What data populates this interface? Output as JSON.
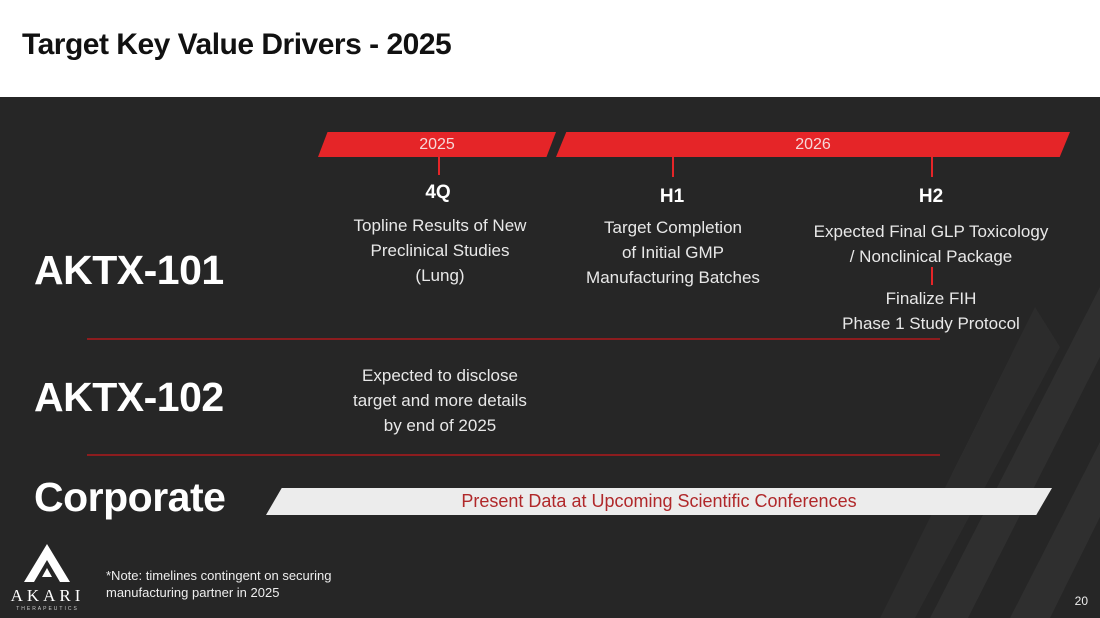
{
  "header": {
    "title": "Target Key Value Drivers - 2025"
  },
  "timeline": {
    "years": [
      "2025",
      "2026"
    ],
    "milestones": [
      {
        "heading": "4Q",
        "lines": [
          "Topline Results of New",
          "Preclinical Studies",
          "(Lung)"
        ]
      },
      {
        "heading": "H1",
        "lines": [
          "Target Completion",
          "of Initial GMP",
          "Manufacturing Batches"
        ]
      },
      {
        "heading": "H2",
        "lines": [
          "Expected Final GLP Toxicology",
          "/ Nonclinical Package"
        ]
      }
    ],
    "h2_followup": [
      "Finalize FIH",
      "Phase 1 Study Protocol"
    ]
  },
  "rows": {
    "aktx101": "AKTX-101",
    "aktx102": "AKTX-102",
    "aktx102_text": [
      "Expected to disclose",
      "target and more details",
      "by end of 2025"
    ],
    "corporate": "Corporate",
    "corporate_bar": "Present Data at Upcoming Scientific Conferences"
  },
  "footer": {
    "note": [
      "*Note: timelines contingent on securing",
      "manufacturing partner in 2025"
    ],
    "page_number": "20",
    "logo_text": "AKARI",
    "logo_sub": "THERAPEUTICS"
  },
  "colors": {
    "accent_red": "#e52528",
    "panel_bg": "#262626",
    "separator": "#8c1c1e"
  }
}
